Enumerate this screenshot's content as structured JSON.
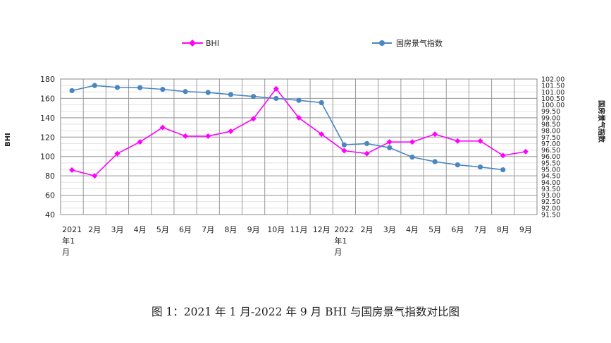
{
  "caption": "图 1：2021 年 1 月-2022 年 9 月 BHI 与国房景气指数对比图",
  "chart_data": {
    "type": "line",
    "categories": [
      "2021\n年1\n月",
      "2月",
      "3月",
      "4月",
      "5月",
      "6月",
      "7月",
      "8月",
      "9月",
      "10月",
      "11月",
      "12月",
      "2022\n年1\n月",
      "2月",
      "3月",
      "4月",
      "5月",
      "6月",
      "7月",
      "8月",
      "9月"
    ],
    "series": [
      {
        "name": "BHI",
        "axis": "left",
        "color": "#ff00ff",
        "marker": "diamond",
        "values": [
          86,
          80,
          103,
          115,
          130,
          121,
          121,
          126,
          139,
          170,
          140,
          123,
          106,
          103,
          115,
          115,
          123,
          116,
          116,
          101,
          105
        ]
      },
      {
        "name": "国房景气指数",
        "axis": "right",
        "color": "#4a86c0",
        "marker": "circle",
        "values": [
          101.1,
          101.5,
          101.35,
          101.33,
          101.2,
          101.03,
          100.96,
          100.8,
          100.65,
          100.5,
          100.35,
          100.17,
          96.9,
          97.0,
          96.68,
          95.95,
          95.6,
          95.35,
          95.18,
          94.97,
          null
        ]
      }
    ],
    "ylabel": "BHI",
    "ylabel_right": "国房景气指数",
    "ylim": [
      40,
      180
    ],
    "yticks": [
      40,
      60,
      80,
      100,
      120,
      140,
      160,
      180
    ],
    "ylim_right": [
      91.5,
      102.0
    ],
    "yticks_right": [
      "91.50",
      "92.00",
      "92.50",
      "93.00",
      "93.50",
      "94.00",
      "94.50",
      "95.00",
      "95.50",
      "96.00",
      "96.50",
      "97.00",
      "97.50",
      "98.00",
      "98.50",
      "99.00",
      "99.50",
      "100.00",
      "100.50",
      "101.00",
      "101.50",
      "102.00"
    ],
    "grid": true,
    "legend": "top"
  }
}
